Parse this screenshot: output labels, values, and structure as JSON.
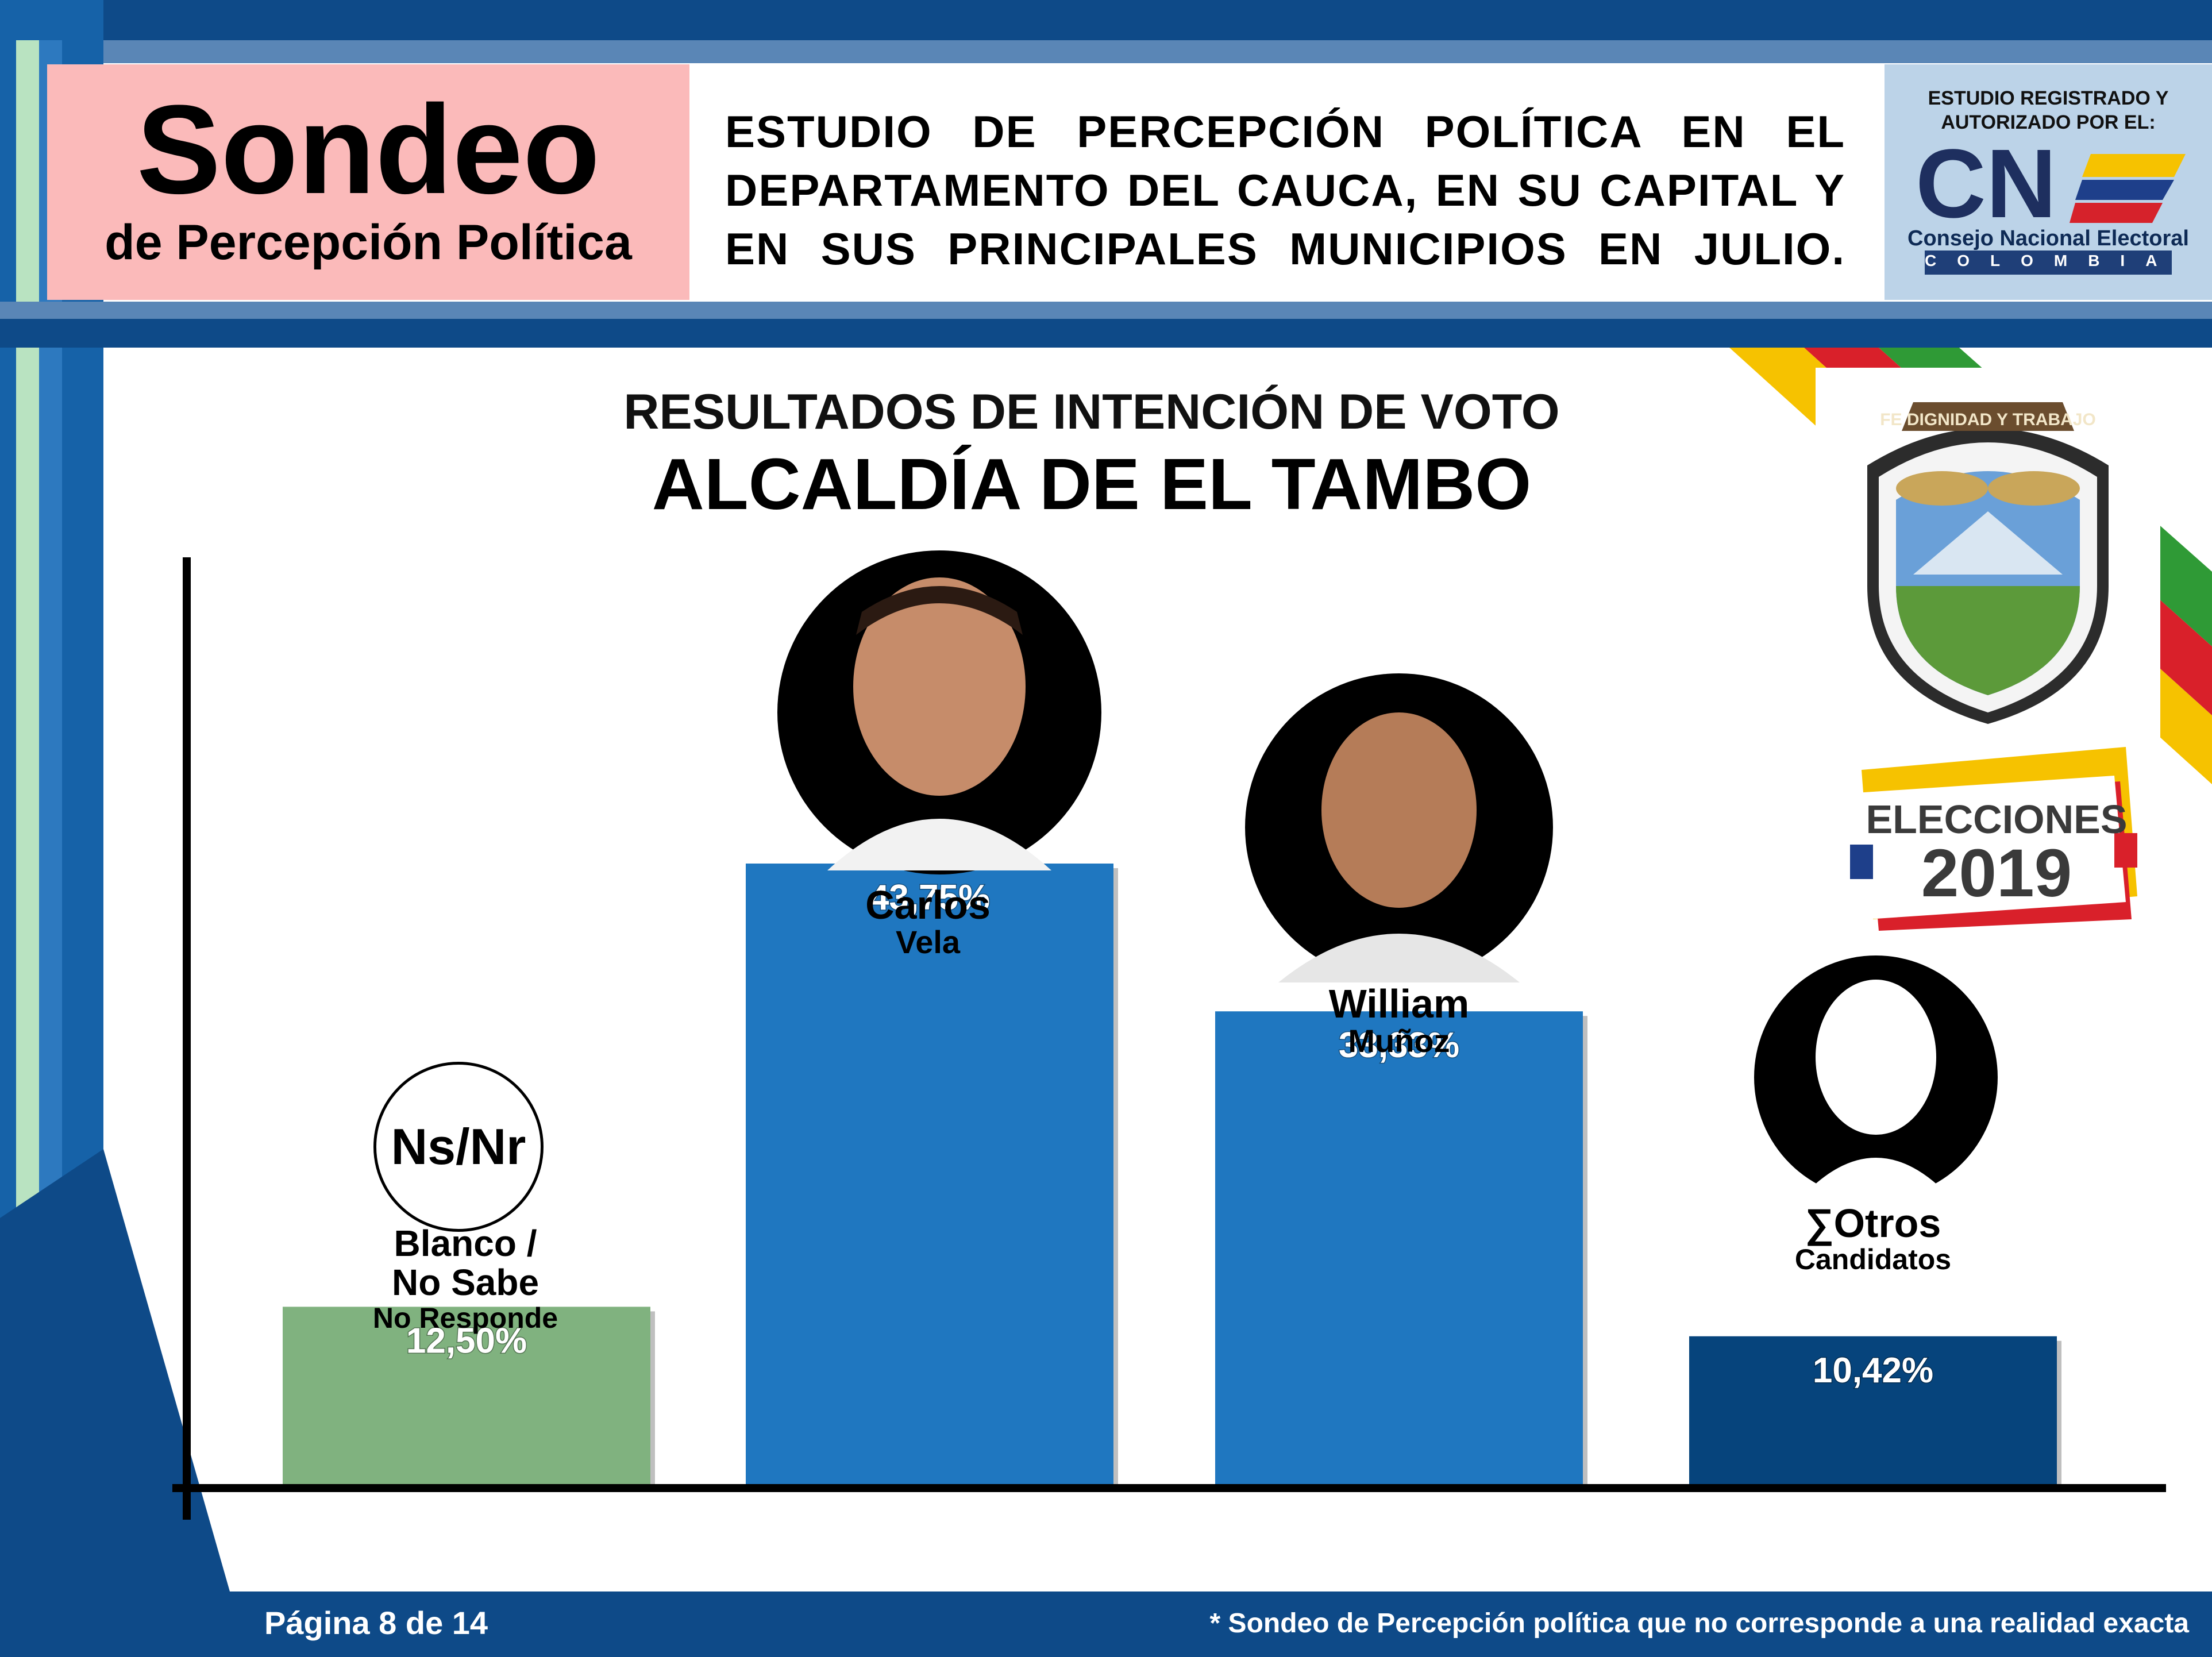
{
  "header": {
    "sondeo_title": "Sondeo",
    "sondeo_subtitle": "de Percepción Política",
    "study_text": "ESTUDIO DE PERCEPCIÓN POLÍTICA EN EL DEPARTAMENTO DEL CAUCA, EN SU CAPITAL Y EN SUS PRINCIPALES MUNICIPIOS EN JULIO.",
    "registered_line1": "ESTUDIO REGISTRADO Y",
    "registered_line2": "AUTORIZADO POR EL:",
    "cne_logo_text": "CN",
    "cne_name": "Consejo Nacional Electoral",
    "cne_country": "COLOMBIA"
  },
  "badge": {
    "elecciones": "ELECCIONES",
    "year": "2019",
    "shield_motto": "FE DIGNIDAD Y TRABAJO"
  },
  "chart_data": {
    "type": "bar",
    "subtitle": "RESULTADOS DE INTENCIÓN DE VOTO",
    "title": "ALCALDÍA DE EL TAMBO",
    "categories": [
      "Blanco / No Sabe No Responde",
      "Carlos Vela",
      "William Muñoz",
      "∑Otros Candidatos"
    ],
    "values": [
      12.5,
      43.75,
      33.33,
      10.42
    ],
    "value_labels": [
      "12,50%",
      "43,75%",
      "33,33%",
      "10,42%"
    ],
    "unit": "%",
    "ylim": [
      0,
      55
    ],
    "grid": false,
    "colors": [
      "#80b27f",
      "#1f77c0",
      "#1f77c0",
      "#06447c"
    ],
    "candidates": [
      {
        "line1": "Blanco /",
        "line2": "No Sabe",
        "line3": "No Responde",
        "icon": "Ns/Nr"
      },
      {
        "line1": "Carlos",
        "line2": "Vela"
      },
      {
        "line1": "William",
        "line2": "Muñoz"
      },
      {
        "line1": "∑Otros",
        "line2": "Candidatos"
      }
    ]
  },
  "footer": {
    "page": "Página 8 de 14",
    "disclaimer": "* Sondeo de Percepción política que no corresponde a una realidad exacta"
  }
}
